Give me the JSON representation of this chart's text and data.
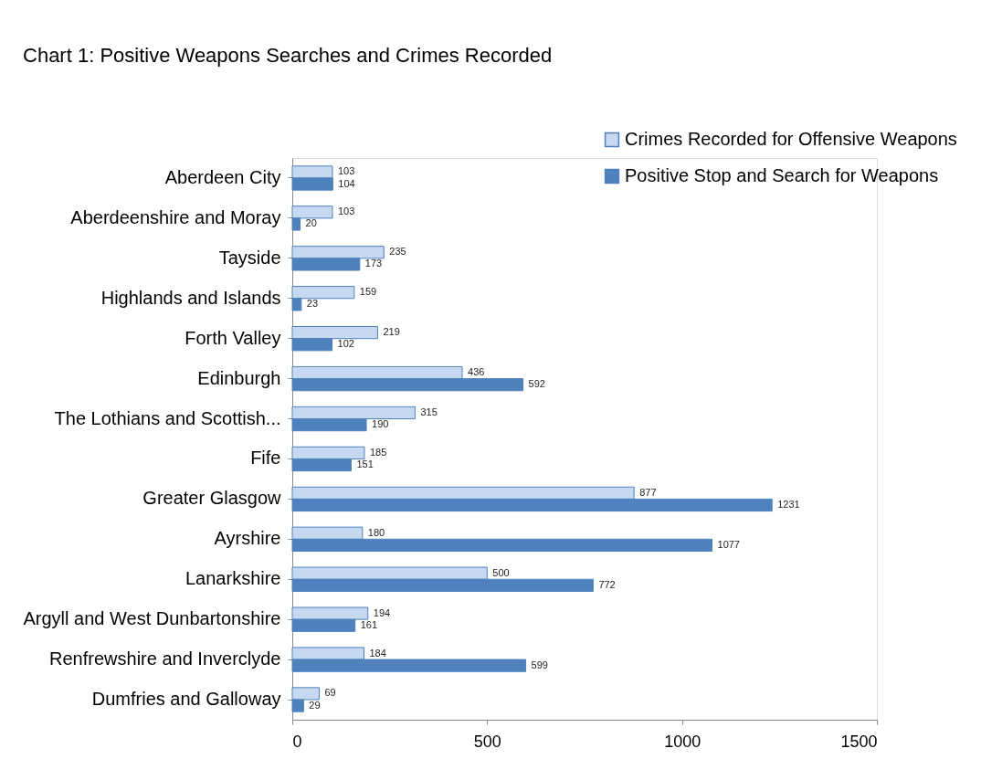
{
  "chart_data": {
    "type": "bar",
    "orientation": "horizontal",
    "title": "Chart 1: Positive Weapons Searches and Crimes Recorded",
    "categories": [
      "Aberdeen City",
      "Aberdeenshire and Moray",
      "Tayside",
      "Highlands and Islands",
      "Forth Valley",
      "Edinburgh",
      "The Lothians and Scottish...",
      "Fife",
      "Greater Glasgow",
      "Ayrshire",
      "Lanarkshire",
      "Argyll and West Dunbartonshire",
      "Renfrewshire and Inverclyde",
      "Dumfries and Galloway"
    ],
    "series": [
      {
        "name": "Crimes Recorded for Offensive Weapons",
        "color": "#c6d9f1",
        "values": [
          103,
          103,
          235,
          159,
          219,
          436,
          315,
          185,
          877,
          180,
          500,
          194,
          184,
          69
        ]
      },
      {
        "name": "Positive Stop and Search for Weapons",
        "color": "#4f81bd",
        "values": [
          104,
          20,
          173,
          23,
          102,
          592,
          190,
          151,
          1231,
          1077,
          772,
          161,
          599,
          29
        ]
      }
    ],
    "xlim": [
      0,
      1500
    ],
    "xticks": [
      0,
      500,
      1000,
      1500
    ],
    "grid": false,
    "legend": "top right",
    "data_labels": true
  }
}
